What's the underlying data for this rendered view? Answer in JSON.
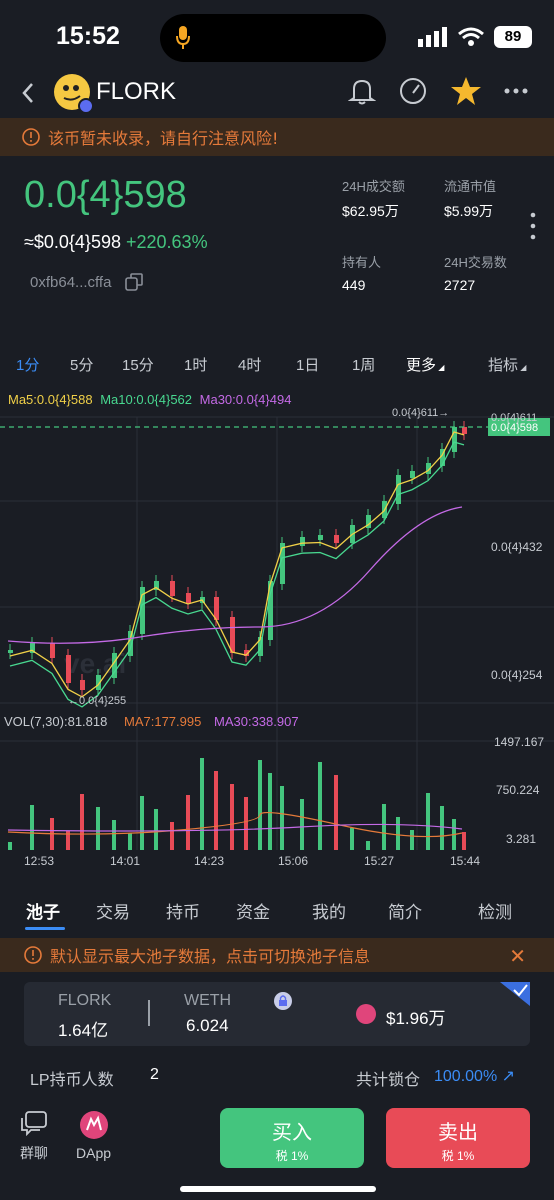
{
  "status": {
    "time": "15:52",
    "battery": "89"
  },
  "nav": {
    "title": "FLORK"
  },
  "warning": "该币暂未收录，请自行注意风险!",
  "price": {
    "main": "0.0{4}598",
    "usd": "≈$0.0{4}598",
    "change": "+220.63%",
    "address": "0xfb64...cffa"
  },
  "stats": {
    "vol24_label": "24H成交额",
    "vol24": "$62.95万",
    "mcap_label": "流通市值",
    "mcap": "$5.99万",
    "holders_label": "持有人",
    "holders": "449",
    "tx_label": "24H交易数",
    "tx": "2727"
  },
  "intervals": [
    "1分",
    "5分",
    "15分",
    "1时",
    "4时",
    "1日",
    "1周",
    "更多",
    "指标"
  ],
  "ma": {
    "ma5": "Ma5:0.0{4}588",
    "ma10": "Ma10:0.0{4}562",
    "ma30": "Ma30:0.0{4}494"
  },
  "vol": {
    "label": "VOL(7,30):81.818",
    "ma7": "MA7:177.995",
    "ma30": "MA30:338.907"
  },
  "chart_data": {
    "type": "candlestick",
    "y_labels": [
      "0.0{4}611",
      "0.0{4}432",
      "0.0{4}254"
    ],
    "current_price_tag": "0.0{4}598",
    "high_annotation": "0.0{4}611→",
    "low_annotation": "←0.0{4}255",
    "vol_labels": [
      "1497.167",
      "750.224",
      "3.281"
    ],
    "x_labels": [
      "12:53",
      "14:01",
      "14:23",
      "15:06",
      "15:27",
      "15:44"
    ],
    "colors": {
      "up": "#44c57e",
      "down": "#e84b57",
      "ma5": "#f0d048",
      "ma10": "#48d890",
      "ma30": "#c46ae6"
    }
  },
  "tabs": [
    "池子",
    "交易",
    "持币",
    "资金",
    "我的",
    "简介",
    "检测"
  ],
  "pool_warning": "默认显示最大池子数据，点击可切换池子信息",
  "pool": {
    "token_a": "FLORK",
    "amount_a": "1.64亿",
    "token_b": "WETH",
    "amount_b": "6.024",
    "tvl": "$1.96万"
  },
  "lp": {
    "label": "LP持币人数",
    "count": "2",
    "locked_label": "共计锁仓",
    "locked": "100.00%"
  },
  "bottom": {
    "chat": "群聊",
    "dapp": "DApp",
    "buy": "买入",
    "buy_tax": "税 1%",
    "sell": "卖出",
    "sell_tax": "税 1%"
  }
}
